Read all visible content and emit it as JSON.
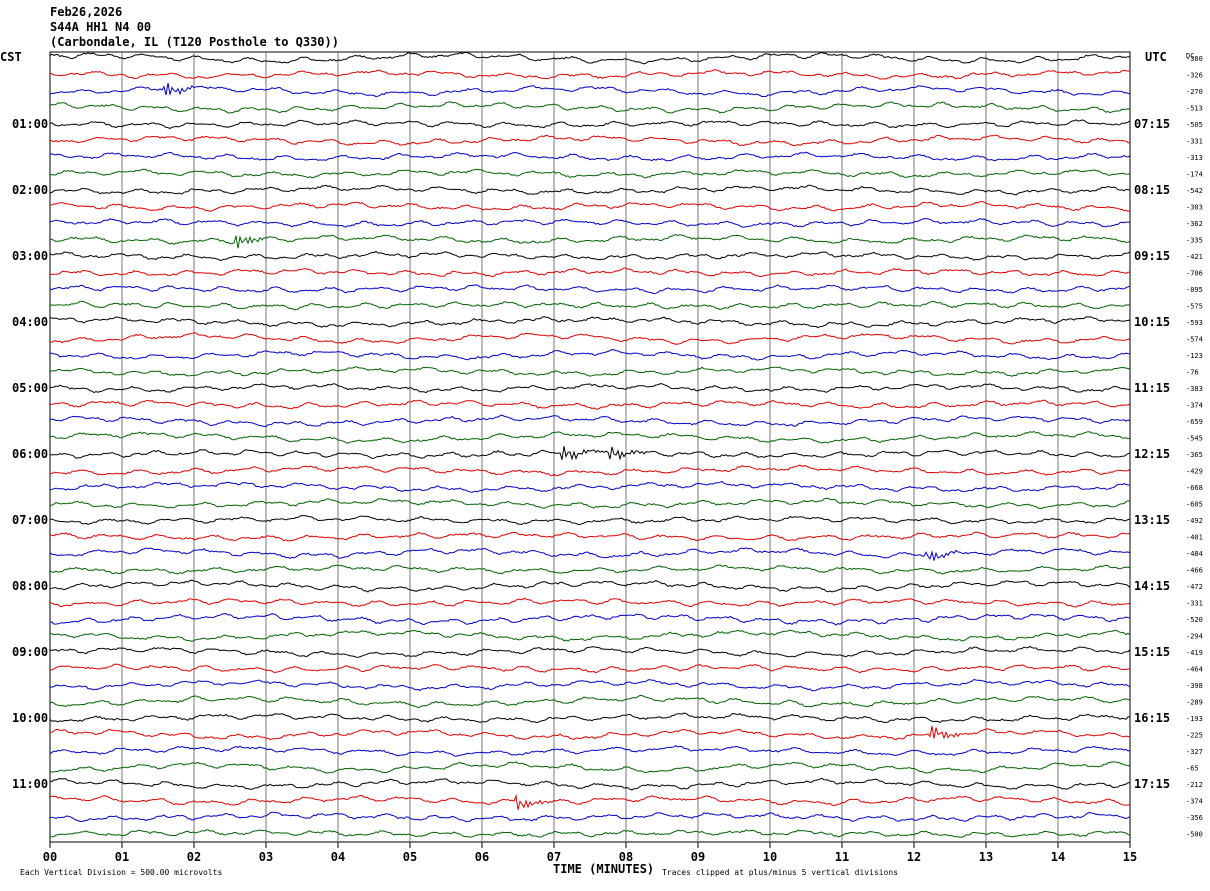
{
  "header": {
    "date": "Feb26,2026",
    "station": "S44A HH1 N4 00",
    "location": "(Carbondale, IL (T120 Posthole to Q330))"
  },
  "labels": {
    "left_tz": "CST",
    "right_tz": "UTC",
    "dc": "DC",
    "x_title": "TIME (MINUTES)",
    "scale_note": "Each Vertical Division =  500.00 microvolts",
    "clip_note": "Traces clipped at plus/minus 5 vertical divisions"
  },
  "chart_data": {
    "type": "line",
    "title": "",
    "xlabel": "TIME (MINUTES)",
    "ylabel": "",
    "xlim": [
      0,
      15
    ],
    "x_ticks": [
      "00",
      "01",
      "02",
      "03",
      "04",
      "05",
      "06",
      "07",
      "08",
      "09",
      "10",
      "11",
      "12",
      "13",
      "14",
      "15"
    ],
    "grid": true,
    "trace_colors": [
      "#000000",
      "#e00000",
      "#0000c8",
      "#006400"
    ],
    "left_hours": [
      "01:00",
      "02:00",
      "03:00",
      "04:00",
      "05:00",
      "06:00",
      "07:00",
      "08:00",
      "09:00",
      "10:00",
      "11:00"
    ],
    "right_hours": [
      "07:15",
      "08:15",
      "09:15",
      "10:15",
      "11:15",
      "12:15",
      "13:15",
      "14:15",
      "15:15",
      "16:15",
      "17:15"
    ],
    "dc_offsets": [
      "-380",
      "-326",
      "-270",
      "-513",
      "-505",
      "-331",
      "-313",
      "-174",
      "-542",
      "-303",
      "-362",
      "-335",
      "-421",
      "-706",
      "-895",
      "-575",
      "-593",
      "-574",
      "-123",
      "-76",
      "-383",
      "-374",
      "-659",
      "-545",
      "-365",
      "-429",
      "-668",
      "-605",
      "-492",
      "-401",
      "-484",
      "-466",
      "-472",
      "-331",
      "-520",
      "-294",
      "-419",
      "-464",
      "-398",
      "-289",
      "-193",
      "-225",
      "-327",
      "-65",
      "-212",
      "-374",
      "-356",
      "-500"
    ],
    "events": [
      {
        "trace": 2,
        "minute": 1.6
      },
      {
        "trace": 11,
        "minute": 2.6
      },
      {
        "trace": 24,
        "minute": 7.15
      },
      {
        "trace": 24,
        "minute": 7.8
      },
      {
        "trace": 30,
        "minute": 12.2
      },
      {
        "trace": 41,
        "minute": 12.25
      },
      {
        "trace": 45,
        "minute": 6.5
      }
    ]
  }
}
